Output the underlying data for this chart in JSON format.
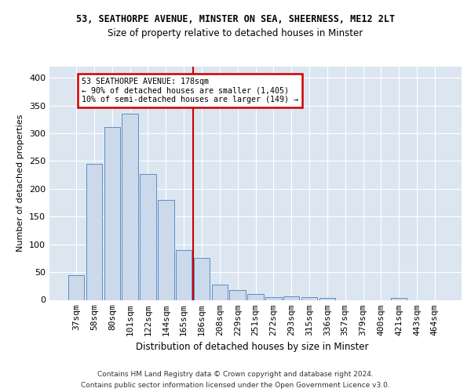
{
  "title1": "53, SEATHORPE AVENUE, MINSTER ON SEA, SHEERNESS, ME12 2LT",
  "title2": "Size of property relative to detached houses in Minster",
  "xlabel": "Distribution of detached houses by size in Minster",
  "ylabel": "Number of detached properties",
  "footer1": "Contains HM Land Registry data © Crown copyright and database right 2024.",
  "footer2": "Contains public sector information licensed under the Open Government Licence v3.0.",
  "bins": [
    "37sqm",
    "58sqm",
    "80sqm",
    "101sqm",
    "122sqm",
    "144sqm",
    "165sqm",
    "186sqm",
    "208sqm",
    "229sqm",
    "251sqm",
    "272sqm",
    "293sqm",
    "315sqm",
    "336sqm",
    "357sqm",
    "379sqm",
    "400sqm",
    "421sqm",
    "443sqm",
    "464sqm"
  ],
  "values": [
    45,
    245,
    312,
    335,
    227,
    180,
    90,
    75,
    27,
    17,
    10,
    5,
    6,
    5,
    3,
    0,
    0,
    0,
    4,
    0,
    0
  ],
  "bar_color": "#ccd9ea",
  "bar_edge_color": "#5b8ec4",
  "vline_color": "#cc0000",
  "vline_bin_index": 6,
  "annotation_line1": "53 SEATHORPE AVENUE: 178sqm",
  "annotation_line2": "← 90% of detached houses are smaller (1,405)",
  "annotation_line3": "10% of semi-detached houses are larger (149) →",
  "annotation_box_edgecolor": "#cc0000",
  "bg_color": "#dce6f1",
  "ylim": [
    0,
    420
  ],
  "yticks": [
    0,
    50,
    100,
    150,
    200,
    250,
    300,
    350,
    400
  ]
}
